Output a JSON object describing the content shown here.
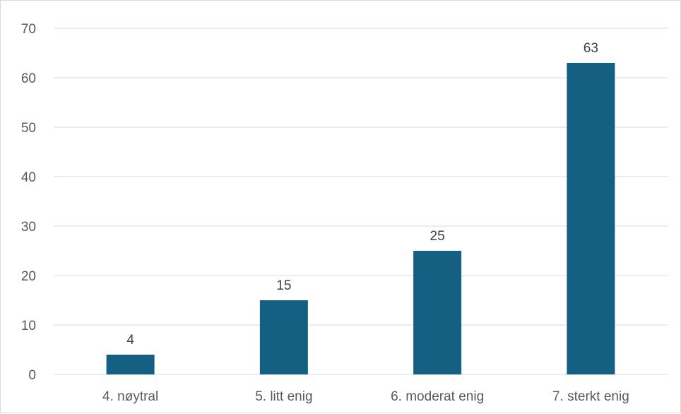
{
  "chart_data": {
    "type": "bar",
    "categories": [
      "4. nøytral",
      "5. litt enig",
      "6. moderat enig",
      "7. sterkt enig"
    ],
    "values": [
      4,
      15,
      25,
      63
    ],
    "data_labels": [
      "4",
      "15",
      "25",
      "63"
    ],
    "title": "",
    "xlabel": "",
    "ylabel": "",
    "ylim": [
      0,
      70
    ],
    "yticks": [
      0,
      10,
      20,
      30,
      40,
      50,
      60,
      70
    ],
    "ytick_labels": [
      "0",
      "10",
      "20",
      "30",
      "40",
      "50",
      "60",
      "70"
    ],
    "grid": true,
    "legend": "none",
    "colors": {
      "bar": "#156082",
      "gridline": "#d9d9d9",
      "axis_text": "#595959",
      "label_text": "#404040"
    }
  }
}
